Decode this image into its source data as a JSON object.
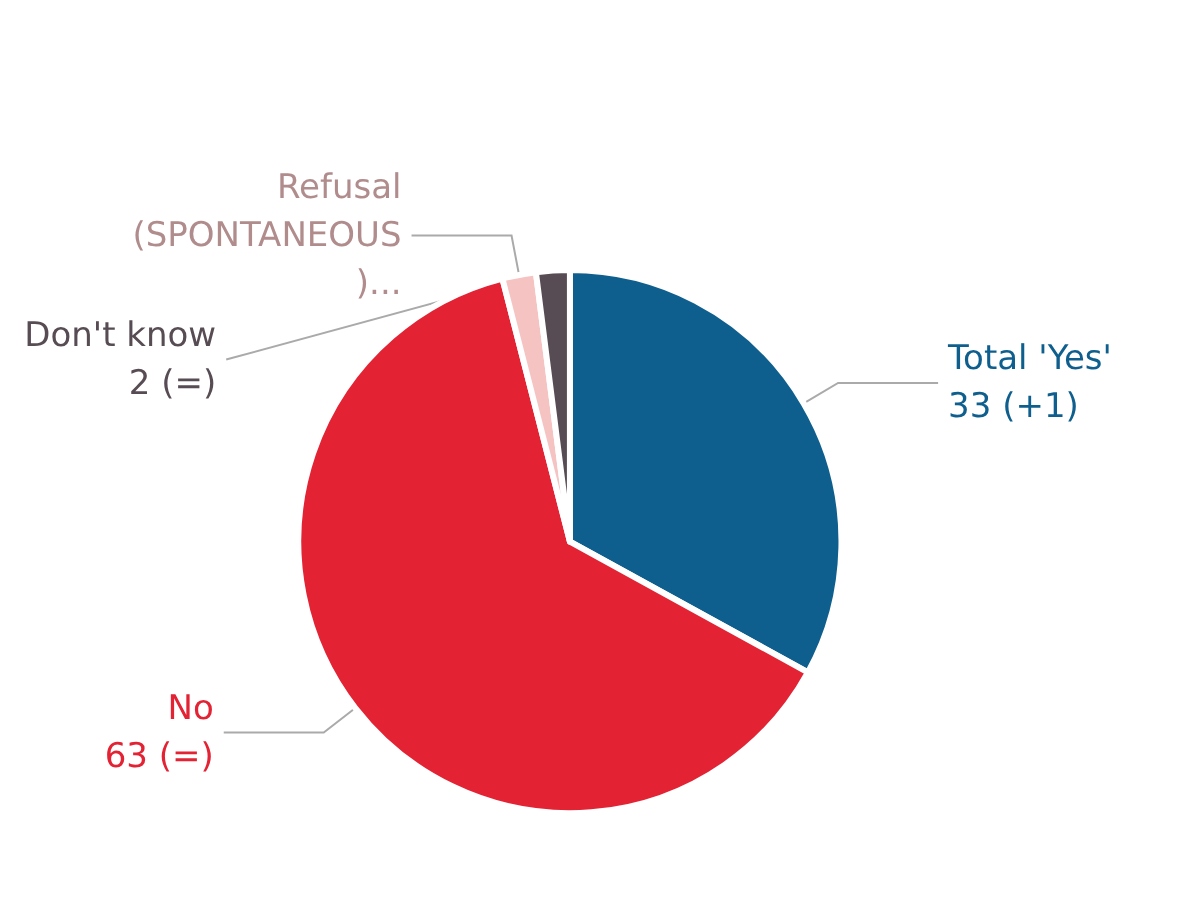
{
  "chart_data": {
    "type": "pie",
    "categories": [
      "Total 'Yes'",
      "No",
      "Refusal (SPONTANEOUS )...",
      "Don't know"
    ],
    "values": [
      33,
      63,
      2,
      2
    ],
    "colors": [
      "#0f5f8e",
      "#e32233",
      "#f6c3c3",
      "#574c53"
    ],
    "value_labels": [
      "33 (+1)",
      "63 (=)",
      null,
      "2 (=)"
    ]
  }
}
